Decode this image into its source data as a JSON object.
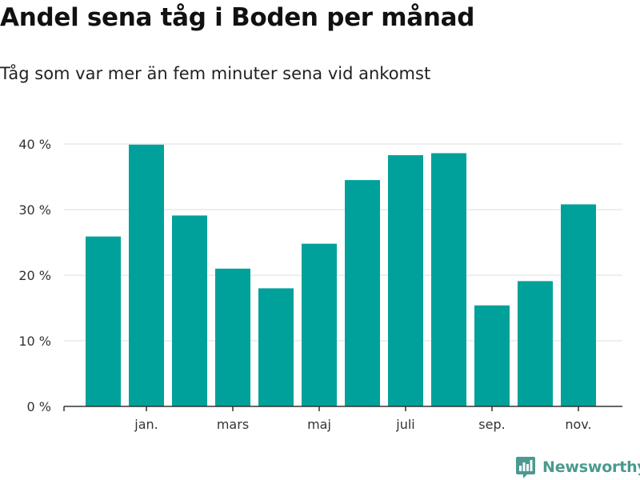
{
  "colors": {
    "bar": "#00a19a",
    "grid": "#dddddd",
    "axis": "#333333",
    "text": "#333333",
    "brand": "#4a9a90"
  },
  "brand": {
    "name": "Newsworthy",
    "icon": "newsworthy-logo-icon"
  },
  "chart_data": {
    "type": "bar",
    "title": "Andel sena tåg i Boden per månad",
    "subtitle": "Tåg som var mer än fem minuter sena vid ankomst",
    "xlabel": "",
    "ylabel": "",
    "ylim": [
      0,
      40
    ],
    "grid": true,
    "y_ticks": [
      {
        "value": 0,
        "label": "0 %"
      },
      {
        "value": 10,
        "label": "10 %"
      },
      {
        "value": 20,
        "label": "20 %"
      },
      {
        "value": 30,
        "label": "30 %"
      },
      {
        "value": 40,
        "label": "40 %"
      }
    ],
    "x_tick_labels": [
      {
        "index": 1,
        "label": "jan."
      },
      {
        "index": 3,
        "label": "mars"
      },
      {
        "index": 5,
        "label": "maj"
      },
      {
        "index": 7,
        "label": "juli"
      },
      {
        "index": 9,
        "label": "sep."
      },
      {
        "index": 11,
        "label": "nov."
      }
    ],
    "values": [
      25.9,
      39.9,
      29.1,
      21.0,
      18.0,
      24.8,
      34.5,
      38.3,
      38.6,
      15.4,
      19.1,
      30.8
    ]
  }
}
